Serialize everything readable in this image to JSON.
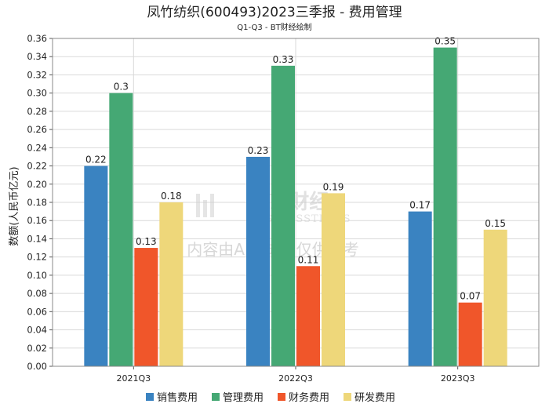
{
  "chart_data": {
    "type": "bar",
    "title": "凤竹纺织(600493)2023三季报 - 费用管理",
    "subtitle": "Q1-Q3 - BT财经绘制",
    "xlabel": "",
    "ylabel": "数额(人民币亿元)",
    "ylim": [
      0,
      0.36
    ],
    "yticks": [
      "0.00",
      "0.02",
      "0.04",
      "0.06",
      "0.08",
      "0.10",
      "0.12",
      "0.14",
      "0.16",
      "0.18",
      "0.20",
      "0.22",
      "0.24",
      "0.26",
      "0.28",
      "0.30",
      "0.32",
      "0.34",
      "0.36"
    ],
    "grid": true,
    "legend_position": "bottom",
    "categories": [
      "2021Q3",
      "2022Q3",
      "2023Q3"
    ],
    "series": [
      {
        "name": "销售费用",
        "color": "#3a83c1",
        "values": [
          0.22,
          0.23,
          0.17
        ],
        "labels": [
          "0.22",
          "0.23",
          "0.17"
        ]
      },
      {
        "name": "管理费用",
        "color": "#45a874",
        "values": [
          0.3,
          0.33,
          0.35
        ],
        "labels": [
          "0.3",
          "0.33",
          "0.35"
        ]
      },
      {
        "name": "财务费用",
        "color": "#f0562a",
        "values": [
          0.13,
          0.11,
          0.07
        ],
        "labels": [
          "0.13",
          "0.11",
          "0.07"
        ]
      },
      {
        "name": "研发费用",
        "color": "#eed77a",
        "values": [
          0.18,
          0.19,
          0.15
        ],
        "labels": [
          "0.18",
          "0.19",
          "0.15"
        ]
      }
    ]
  },
  "watermark": {
    "brand": "BT 财经",
    "brand_sub": "BUSINESSTIMES",
    "notice": "内容由AI生成，仅供参考"
  }
}
